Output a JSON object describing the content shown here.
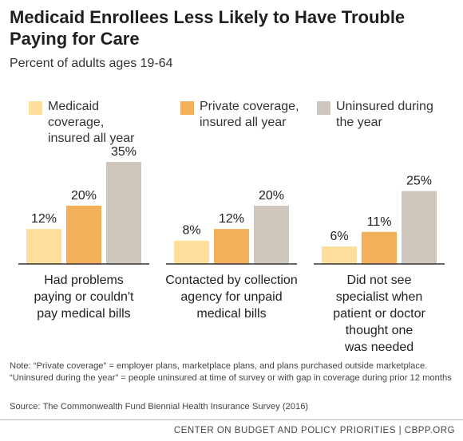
{
  "title": "Medicaid Enrollees Less Likely to Have Trouble Paying for Care",
  "subtitle": "Percent of adults ages 19-64",
  "colors": {
    "medicaid": "#fddf9b",
    "private": "#f3b05b",
    "uninsured": "#cfc7bd",
    "baseline": "#333333"
  },
  "chart_data": {
    "type": "bar",
    "categories": [
      "Had problems paying or couldn't pay medical bills",
      "Contacted by collection agency for unpaid medical bills",
      "Did not see specialist when patient or doctor thought one was needed"
    ],
    "category_lines": [
      [
        "Had problems",
        "paying or couldn't",
        "pay medical bills"
      ],
      [
        "Contacted by collection",
        "agency for unpaid",
        "medical bills"
      ],
      [
        "Did not see",
        "specialist when",
        "patient or doctor",
        "thought one",
        "was needed"
      ]
    ],
    "series": [
      {
        "name": "Medicaid coverage, insured all year",
        "legend_lines": "Medicaid coverage,\ninsured all year",
        "color": "#fddf9b",
        "values": [
          12,
          8,
          6
        ],
        "labels": [
          "12%",
          "8%",
          "6%"
        ]
      },
      {
        "name": "Private coverage, insured all year",
        "legend_lines": "Private coverage,\ninsured all year",
        "color": "#f3b05b",
        "values": [
          20,
          12,
          11
        ],
        "labels": [
          "20%",
          "12%",
          "11%"
        ]
      },
      {
        "name": "Uninsured during the year",
        "legend_lines": "Uninsured during\nthe year",
        "color": "#cfc7bd",
        "values": [
          35,
          20,
          25
        ],
        "labels": [
          "35%",
          "20%",
          "25%"
        ]
      }
    ],
    "ylim": [
      0,
      35
    ],
    "grid": false,
    "legend": "top"
  },
  "note": "Note: “Private coverage” = employer plans, marketplace plans, and plans purchased outside marketplace. “Uninsured during the year” = people uninsured at time of survey or with gap in coverage during prior 12 months",
  "source": "Source: The Commonwealth Fund Biennial Health Insurance Survey (2016)",
  "footer": "CENTER ON BUDGET AND POLICY PRIORITIES | CBPP.ORG"
}
